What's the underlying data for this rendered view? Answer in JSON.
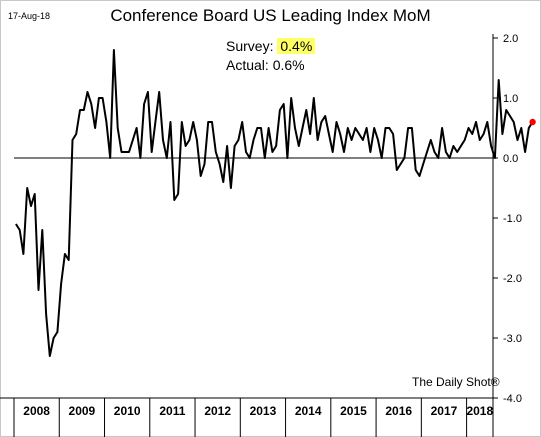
{
  "date_label": "17-Aug-18",
  "annotations": {
    "survey_label": "Survey:",
    "survey_value": "0.4%",
    "actual_label": "Actual:",
    "actual_value": "0.6%"
  },
  "credit": "The Daily Shot®",
  "chart_data": {
    "type": "line",
    "title": "Conference Board US Leading Index MoM",
    "xlabel": "",
    "ylabel": "",
    "ylim": [
      -4.0,
      2.0
    ],
    "ytick_labels": [
      "2.0",
      "1.0",
      "0.0",
      "-1.0",
      "-2.0",
      "-3.0",
      "-4.0"
    ],
    "yticks": [
      2,
      1,
      0,
      -1,
      -2,
      -3,
      -4
    ],
    "xtick_labels": [
      "2008",
      "2009",
      "2010",
      "2011",
      "2012",
      "2013",
      "2014",
      "2015",
      "2016",
      "2017",
      "2018"
    ],
    "x_start": "2008-01",
    "x_end": "2018-07",
    "grid": false,
    "zero_line": true,
    "line_color": "#000000",
    "last_point_color": "#ff0000",
    "series": [
      {
        "values": [
          -1.1,
          -1.2,
          -1.6,
          -0.5,
          -0.8,
          -0.6,
          -2.2,
          -1.2,
          -2.6,
          -3.3,
          -3.0,
          -2.9,
          -2.1,
          -1.6,
          -1.7,
          0.3,
          0.4,
          0.8,
          0.8,
          1.1,
          0.9,
          0.5,
          1.0,
          1.0,
          0.6,
          0.0,
          1.8,
          0.5,
          0.1,
          0.1,
          0.1,
          0.3,
          0.5,
          0.0,
          0.9,
          1.1,
          0.1,
          0.6,
          1.1,
          0.3,
          0.0,
          0.6,
          -0.7,
          -0.6,
          0.6,
          0.2,
          0.3,
          0.6,
          0.3,
          -0.3,
          -0.1,
          0.6,
          0.6,
          0.1,
          -0.1,
          -0.4,
          0.2,
          -0.5,
          0.2,
          0.3,
          0.6,
          0.1,
          0.0,
          0.3,
          0.5,
          0.5,
          0.0,
          0.5,
          0.1,
          0.2,
          0.8,
          0.9,
          0.0,
          1.0,
          0.5,
          0.2,
          0.5,
          0.8,
          0.4,
          1.0,
          0.3,
          0.6,
          0.7,
          0.4,
          0.1,
          0.6,
          0.4,
          0.1,
          0.5,
          0.3,
          0.5,
          0.4,
          0.3,
          0.5,
          0.1,
          0.5,
          0.3,
          0.0,
          0.5,
          0.5,
          0.4,
          -0.2,
          -0.1,
          0.0,
          0.5,
          0.5,
          -0.2,
          -0.3,
          -0.1,
          0.1,
          0.3,
          0.1,
          0.0,
          0.5,
          0.1,
          0.0,
          0.2,
          0.1,
          0.2,
          0.3,
          0.5,
          0.4,
          0.6,
          0.3,
          0.4,
          0.6,
          0.2,
          0.0,
          1.3,
          0.4,
          0.8,
          0.7,
          0.6,
          0.3,
          0.5,
          0.1,
          0.5,
          0.6
        ]
      }
    ]
  }
}
